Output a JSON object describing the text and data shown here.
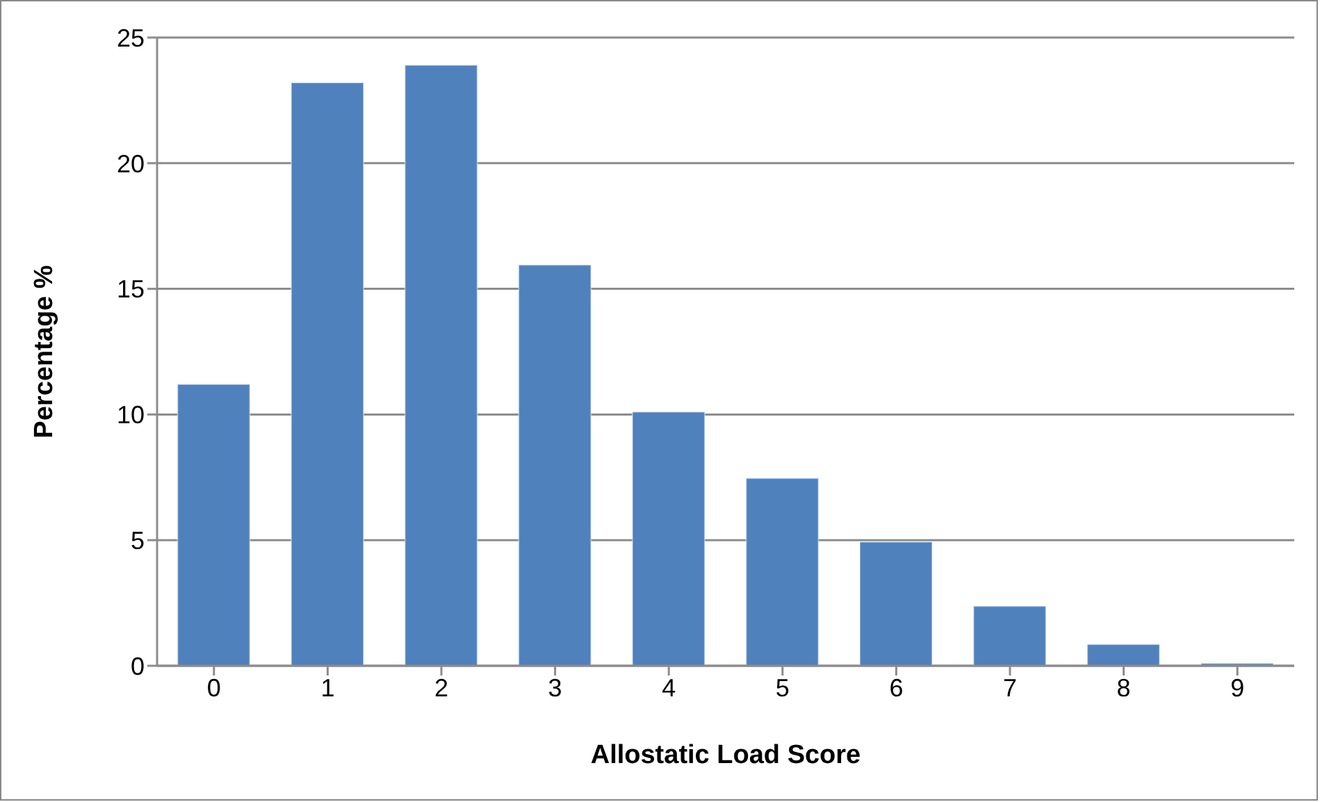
{
  "chart_data": {
    "type": "bar",
    "xlabel": "Allostatic Load Score",
    "ylabel": "Percentage  %",
    "categories": [
      "0",
      "1",
      "2",
      "3",
      "4",
      "5",
      "6",
      "7",
      "8",
      "9"
    ],
    "values": [
      11.2,
      23.2,
      23.9,
      15.95,
      10.1,
      7.46,
      4.93,
      2.37,
      0.85,
      0.1
    ],
    "color": "#4f81bd",
    "ylim": [
      0,
      25
    ],
    "yticks": [
      0,
      5,
      10,
      15,
      20,
      25
    ],
    "grid": "y",
    "legend": false
  }
}
